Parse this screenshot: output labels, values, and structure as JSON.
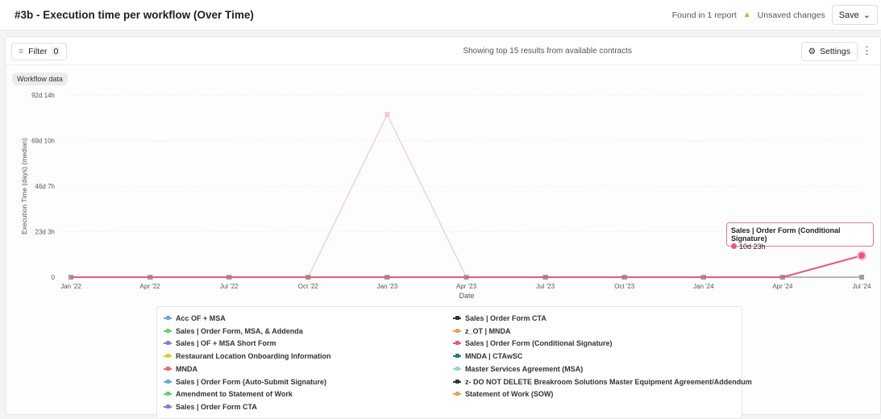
{
  "header": {
    "title": "#3b - Execution time per workflow (Over Time)",
    "found": "Found in 1 report",
    "unsaved": "Unsaved changes",
    "save": "Save"
  },
  "toolbar": {
    "filter": "Filter",
    "filter_count": "0",
    "showing": "Showing top 15 results from available contracts",
    "settings": "Settings"
  },
  "chip": "Workflow data",
  "tooltip": {
    "series": "Sales | Order Form (Conditional Signature)",
    "value": "10d 23h"
  },
  "chart_data": {
    "type": "line",
    "xlabel": "Date",
    "ylabel": "Execution Time (days) (median)",
    "categories": [
      "Jan '22",
      "Apr '22",
      "Jul '22",
      "Oct '22",
      "Jan '23",
      "Apr '23",
      "Jul '23",
      "Oct '23",
      "Jan '24",
      "Apr '24",
      "Jul '24"
    ],
    "yticks": [
      "0",
      "23d 3h",
      "46d 7h",
      "69d 10h",
      "92d 14h"
    ],
    "ylim": [
      0,
      92.58
    ],
    "grid": true,
    "legend_position": "bottom",
    "highlighted": "Sales | Order Form (Conditional Signature)",
    "series": [
      {
        "name": "Acc OF + MSA",
        "color": "#6aa6e0",
        "values": [
          0,
          0,
          0,
          0,
          0,
          0,
          0,
          0,
          0,
          0,
          0
        ]
      },
      {
        "name": "Sales | Order Form, MSA, & Addenda",
        "color": "#6ccf6c",
        "values": [
          0,
          0,
          0,
          0,
          0,
          0,
          0,
          0,
          0,
          0,
          0
        ]
      },
      {
        "name": "Sales | OF + MSA Short Form",
        "color": "#8a7ad8",
        "values": [
          0,
          0,
          0,
          0,
          0,
          0,
          0,
          0,
          0,
          0,
          0
        ]
      },
      {
        "name": "Restaurant Location Onboarding Information",
        "color": "#d6cf3a",
        "values": [
          0,
          0,
          0,
          0,
          0,
          0,
          0,
          0,
          0,
          0,
          0
        ]
      },
      {
        "name": "MNDA",
        "color": "#e86a6a",
        "values": [
          0,
          0,
          0,
          0,
          82.7,
          0,
          0,
          0,
          0,
          0,
          0
        ]
      },
      {
        "name": "Sales | Order Form (Auto-Submit Signature)",
        "color": "#6aa6e0",
        "values": [
          0,
          0,
          0,
          0,
          0,
          0,
          0,
          0,
          0,
          0,
          0
        ]
      },
      {
        "name": "Amendment to Statement of Work",
        "color": "#6ccf6c",
        "values": [
          0,
          0,
          0,
          0,
          0,
          0,
          0,
          0,
          0,
          0,
          0
        ]
      },
      {
        "name": "Sales | Order Form CTA",
        "color": "#8a7ad8",
        "values": [
          0,
          0,
          0,
          0,
          0,
          0,
          0,
          0,
          0,
          0,
          0
        ]
      },
      {
        "name": "Sales | Order Form CTA",
        "color": "#333333",
        "values": [
          0,
          0,
          0,
          0,
          0,
          0,
          0,
          0,
          0,
          0,
          0
        ]
      },
      {
        "name": "z_OT | MNDA",
        "color": "#f0a050",
        "values": [
          0,
          0,
          0,
          0,
          0,
          0,
          0,
          0,
          0,
          0,
          0
        ]
      },
      {
        "name": "Sales | Order Form (Conditional Signature)",
        "color": "#e8587a",
        "values": [
          0,
          0,
          0,
          0,
          0,
          0,
          0,
          0,
          0,
          0,
          10.96
        ]
      },
      {
        "name": "MNDA | CTAwSC",
        "color": "#1f7a7a",
        "values": [
          0,
          0,
          0,
          0,
          0,
          0,
          0,
          0,
          0,
          0,
          0
        ]
      },
      {
        "name": "Master Services Agreement (MSA)",
        "color": "#8fd8d0",
        "values": [
          0,
          0,
          0,
          0,
          0,
          0,
          0,
          0,
          0,
          0,
          0
        ]
      },
      {
        "name": "z- DO NOT DELETE Breakroom Solutions Master Equipment Agreement/Addendum",
        "color": "#333333",
        "values": [
          0,
          0,
          0,
          0,
          0,
          0,
          0,
          0,
          0,
          0,
          0
        ]
      },
      {
        "name": "Statement of Work (SOW)",
        "color": "#f0a050",
        "values": [
          0,
          0,
          0,
          0,
          0,
          0,
          0,
          0,
          0,
          0,
          0
        ]
      }
    ]
  }
}
